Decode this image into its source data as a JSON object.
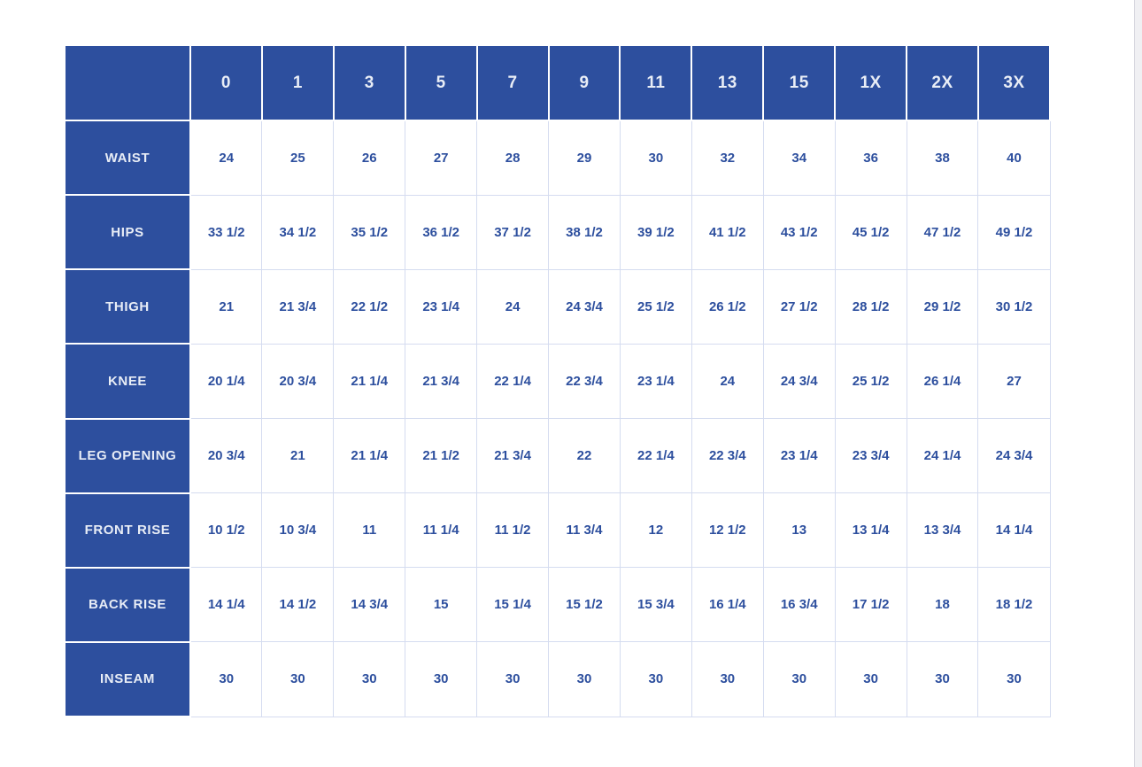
{
  "page": {
    "background": "#ffffff"
  },
  "colors": {
    "header_bg": "#2d4f9e",
    "header_text": "#e8edf6",
    "cell_text": "#2d4f9e",
    "cell_border": "#d5dcf0",
    "cell_gap": "#ffffff",
    "scrollbar_track": "#f0f0f3",
    "scrollbar_border": "#d6d6de"
  },
  "chart_data": {
    "type": "table",
    "title": "",
    "corner_label": "",
    "columns": [
      "0",
      "1",
      "3",
      "5",
      "7",
      "9",
      "11",
      "13",
      "15",
      "1X",
      "2X",
      "3X"
    ],
    "rows": [
      {
        "label": "WAIST",
        "values": [
          "24",
          "25",
          "26",
          "27",
          "28",
          "29",
          "30",
          "32",
          "34",
          "36",
          "38",
          "40"
        ]
      },
      {
        "label": "HIPS",
        "values": [
          "33 1/2",
          "34 1/2",
          "35 1/2",
          "36 1/2",
          "37 1/2",
          "38 1/2",
          "39 1/2",
          "41 1/2",
          "43 1/2",
          "45 1/2",
          "47 1/2",
          "49 1/2"
        ]
      },
      {
        "label": "THIGH",
        "values": [
          "21",
          "21 3/4",
          "22 1/2",
          "23 1/4",
          "24",
          "24 3/4",
          "25 1/2",
          "26 1/2",
          "27 1/2",
          "28 1/2",
          "29 1/2",
          "30 1/2"
        ]
      },
      {
        "label": "KNEE",
        "values": [
          "20 1/4",
          "20 3/4",
          "21 1/4",
          "21 3/4",
          "22 1/4",
          "22 3/4",
          "23 1/4",
          "24",
          "24 3/4",
          "25 1/2",
          "26 1/4",
          "27"
        ]
      },
      {
        "label": "LEG OPENING",
        "values": [
          "20 3/4",
          "21",
          "21 1/4",
          "21 1/2",
          "21 3/4",
          "22",
          "22 1/4",
          "22 3/4",
          "23 1/4",
          "23 3/4",
          "24 1/4",
          "24 3/4"
        ]
      },
      {
        "label": "FRONT RISE",
        "values": [
          "10 1/2",
          "10 3/4",
          "11",
          "11 1/4",
          "11 1/2",
          "11 3/4",
          "12",
          "12 1/2",
          "13",
          "13 1/4",
          "13 3/4",
          "14 1/4"
        ]
      },
      {
        "label": "BACK RISE",
        "values": [
          "14 1/4",
          "14 1/2",
          "14 3/4",
          "15",
          "15 1/4",
          "15 1/2",
          "15 3/4",
          "16 1/4",
          "16 3/4",
          "17 1/2",
          "18",
          "18 1/2"
        ]
      },
      {
        "label": "INSEAM",
        "values": [
          "30",
          "30",
          "30",
          "30",
          "30",
          "30",
          "30",
          "30",
          "30",
          "30",
          "30",
          "30"
        ]
      }
    ]
  }
}
